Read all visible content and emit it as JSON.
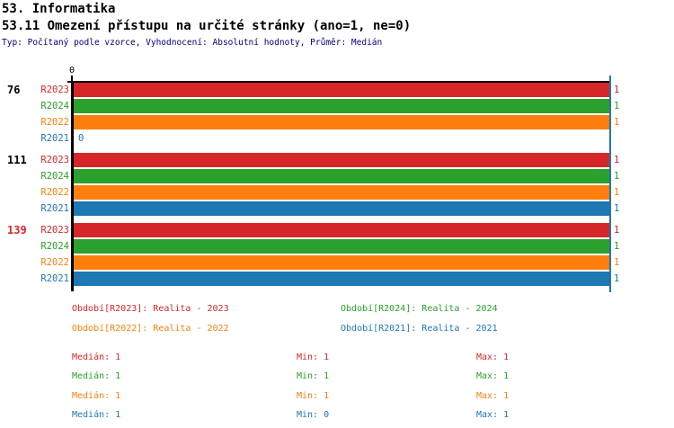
{
  "header": {
    "chapter": "53. Informatika",
    "question": "53.11 Omezení přístupu na určité stránky (ano=1, ne=0)",
    "meta": "Typ: Počítaný podle vzorce, Vyhodnocení: Absolutní hodnoty, Průměr: Medián"
  },
  "colors": {
    "R2023": "#d62728",
    "R2024": "#2ca02c",
    "R2022": "#ff7f0e",
    "R2021": "#1f77b4",
    "axis": "#000000",
    "median_line": "#1f77b4",
    "meta_text": "#000080"
  },
  "chart_data": {
    "type": "bar",
    "orientation": "horizontal",
    "title": "53.11 Omezení přístupu na určité stránky (ano=1, ne=0)",
    "value_axis": {
      "min": 0,
      "max": 1,
      "tick_labels": [
        "0"
      ],
      "origin_label": "0"
    },
    "median_line_value": 1,
    "series_order": [
      "R2023",
      "R2024",
      "R2022",
      "R2021"
    ],
    "groups": [
      {
        "label": "76",
        "label_color": "#000000",
        "values": {
          "R2023": 1,
          "R2024": 1,
          "R2022": 1,
          "R2021": 0
        }
      },
      {
        "label": "111",
        "label_color": "#000000",
        "values": {
          "R2023": 1,
          "R2024": 1,
          "R2022": 1,
          "R2021": 1
        }
      },
      {
        "label": "139",
        "label_color": "#d62728",
        "values": {
          "R2023": 1,
          "R2024": 1,
          "R2022": 1,
          "R2021": 1
        }
      }
    ]
  },
  "legend": {
    "items": [
      {
        "text": "Období[R2023]: Realita - 2023",
        "series": "R2023",
        "col": 0,
        "row": 0
      },
      {
        "text": "Období[R2024]: Realita - 2024",
        "series": "R2024",
        "col": 1,
        "row": 0
      },
      {
        "text": "Období[R2022]: Realita - 2022",
        "series": "R2022",
        "col": 0,
        "row": 1
      },
      {
        "text": "Období[R2021]: Realita - 2021",
        "series": "R2021",
        "col": 1,
        "row": 1
      }
    ]
  },
  "stats": {
    "rows": [
      {
        "series": "R2023",
        "median": "Medián: 1",
        "min": "Min: 1",
        "max": "Max: 1"
      },
      {
        "series": "R2024",
        "median": "Medián: 1",
        "min": "Min: 1",
        "max": "Max: 1"
      },
      {
        "series": "R2022",
        "median": "Medián: 1",
        "min": "Min: 1",
        "max": "Max: 1"
      },
      {
        "series": "R2021",
        "median": "Medián: 1",
        "min": "Min: 0",
        "max": "Max: 1"
      }
    ]
  }
}
